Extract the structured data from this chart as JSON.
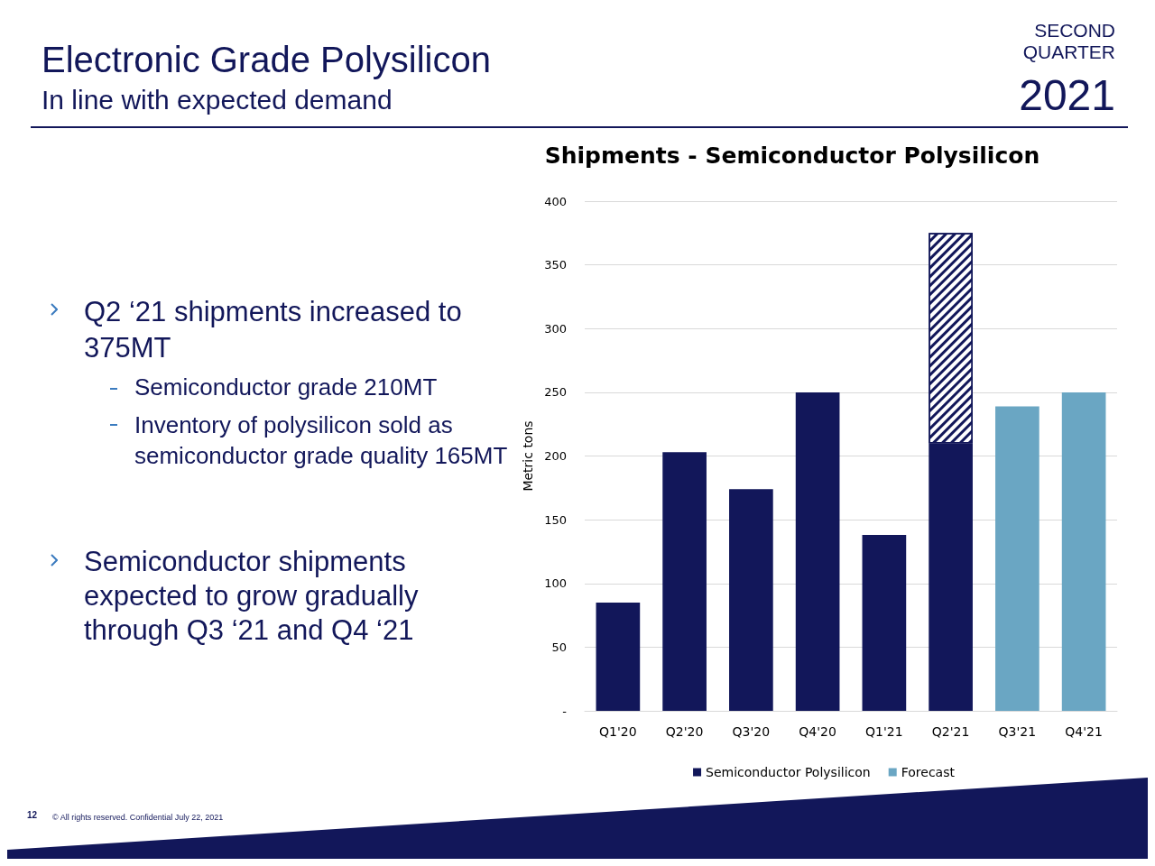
{
  "chart_data": {
    "type": "bar",
    "title": "Electronic Grade Polysilicon",
    "subtitle": "In line with expected demand",
    "ylabel": "Metric tons",
    "annotations": [
      "SECOND QUARTER",
      "2021",
      "Shipments - Semiconductor Polysilicon",
      "Q2 ‘21 shipments increased to 375MT",
      "Semiconductor grade 210MT",
      "Inventory of polysilicon sold as semiconductor grade quality 165MT",
      "Semiconductor shipments expected to grow gradually through Q3 ‘21 and Q4 ‘21",
      "12",
      "© All rights reserved. Confidential July 22, 2021"
    ],
    "categories": [
      "Q1'20",
      "Q2'20",
      "Q3'20",
      "Q4'20",
      "Q1'21",
      "Q2'21",
      "Q3'21",
      "Q4'21"
    ],
    "stacked": true,
    "series": [
      {
        "name": "Semiconductor Polysilicon",
        "color": "#12175a",
        "values": [
          85,
          203,
          174,
          250,
          138,
          210,
          null,
          null
        ]
      },
      {
        "color": "#12175a",
        "values": [
          null,
          null,
          null,
          null,
          null,
          165,
          null,
          null
        ]
      },
      {
        "name": "Forecast",
        "color": "#6aa6c3",
        "values": [
          null,
          null,
          null,
          null,
          null,
          null,
          239,
          250
        ]
      }
    ],
    "ylim": [
      0,
      400
    ],
    "yticks": [
      {
        "value": 0,
        "label": "-"
      },
      50,
      100,
      150,
      200,
      250,
      300,
      350,
      400
    ],
    "grid": "y",
    "legend": "bottom"
  }
}
